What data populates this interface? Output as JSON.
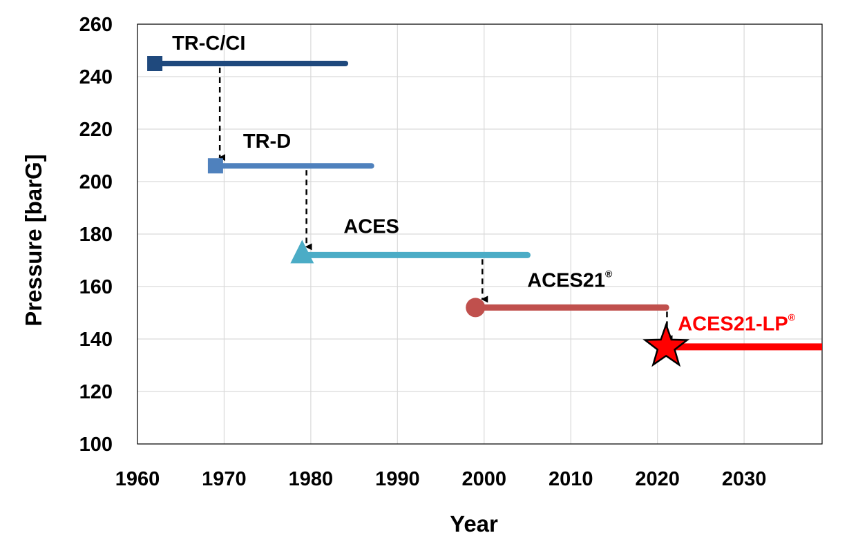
{
  "chart_data": {
    "type": "line",
    "title": "",
    "xlabel": "Year",
    "ylabel": "Pressure [barG]",
    "xlim": [
      1960,
      2039
    ],
    "ylim": [
      100,
      260
    ],
    "xticks": [
      1960,
      1970,
      1980,
      1990,
      2000,
      2010,
      2020,
      2030
    ],
    "yticks": [
      100,
      120,
      140,
      160,
      180,
      200,
      220,
      240,
      260
    ],
    "xtick_labels": [
      "1960",
      "1970",
      "1980",
      "1990",
      "2000",
      "2010",
      "2020",
      "2030"
    ],
    "ytick_labels": [
      "100",
      "120",
      "140",
      "160",
      "180",
      "200",
      "220",
      "240",
      "260"
    ],
    "grid": true,
    "series": [
      {
        "name": "TR-C/CI",
        "label": "TR-C/CI",
        "reg": "",
        "marker": "square",
        "color": "#1F497D",
        "start": 1962,
        "end": 1984,
        "pressure": 245,
        "label_color": "#000000"
      },
      {
        "name": "TR-D",
        "label": "TR-D",
        "reg": "",
        "marker": "square",
        "color": "#4F81BD",
        "start": 1969,
        "end": 1987,
        "pressure": 206,
        "label_color": "#000000"
      },
      {
        "name": "ACES",
        "label": "ACES",
        "reg": "",
        "marker": "triangle",
        "color": "#4BACC6",
        "start": 1979,
        "end": 2005,
        "pressure": 172,
        "label_color": "#000000"
      },
      {
        "name": "ACES21®",
        "label": "ACES21",
        "reg": "®",
        "marker": "circle",
        "color": "#C0504D",
        "start": 1999,
        "end": 2021,
        "pressure": 152,
        "label_color": "#000000"
      },
      {
        "name": "ACES21-LP®",
        "label": "ACES21-LP",
        "reg": "®",
        "marker": "star",
        "color": "#FF0000",
        "start": 2021,
        "end": 2039,
        "pressure": 137,
        "label_color": "#FF0000"
      }
    ],
    "transitions": [
      {
        "x": 1969.5,
        "from": 245,
        "to": 206
      },
      {
        "x": 1979.5,
        "from": 206,
        "to": 172
      },
      {
        "x": 1999.8,
        "from": 172,
        "to": 152
      },
      {
        "x": 2021.1,
        "from": 152,
        "to": 137
      }
    ]
  }
}
